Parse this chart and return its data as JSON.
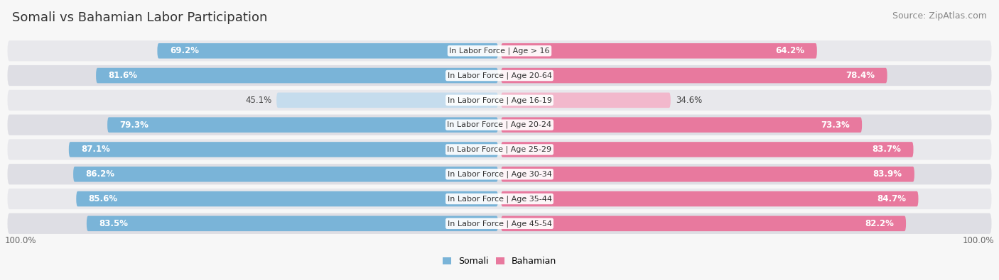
{
  "title": "Somali vs Bahamian Labor Participation",
  "source": "Source: ZipAtlas.com",
  "categories": [
    "In Labor Force | Age > 16",
    "In Labor Force | Age 20-64",
    "In Labor Force | Age 16-19",
    "In Labor Force | Age 20-24",
    "In Labor Force | Age 25-29",
    "In Labor Force | Age 30-34",
    "In Labor Force | Age 35-44",
    "In Labor Force | Age 45-54"
  ],
  "somali_values": [
    69.2,
    81.6,
    45.1,
    79.3,
    87.1,
    86.2,
    85.6,
    83.5
  ],
  "bahamian_values": [
    64.2,
    78.4,
    34.6,
    73.3,
    83.7,
    83.9,
    84.7,
    82.2
  ],
  "somali_color": "#7ab4d8",
  "somali_color_light": "#c5dced",
  "bahamian_color": "#e8799e",
  "bahamian_color_light": "#f2b8cc",
  "row_bg_color": "#e8e8ec",
  "row_bg_color2": "#dedee4",
  "max_value": 100.0,
  "legend_somali": "Somali",
  "legend_bahamian": "Bahamian",
  "title_fontsize": 13,
  "source_fontsize": 9,
  "bar_label_fontsize": 8.5,
  "cat_label_fontsize": 8,
  "legend_fontsize": 9
}
